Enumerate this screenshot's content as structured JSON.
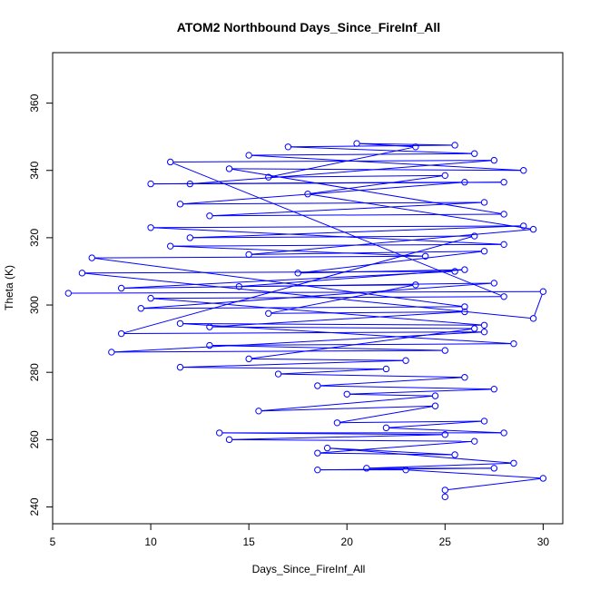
{
  "chart_data": {
    "type": "line",
    "title": "ATOM2 Northbound Days_Since_FireInf_All",
    "xlabel": "Days_Since_FireInf_All",
    "ylabel": "Theta (K)",
    "xlim": [
      5,
      31
    ],
    "ylim": [
      235,
      375
    ],
    "x_ticks": [
      "5",
      "10",
      "15",
      "20",
      "25",
      "30"
    ],
    "y_ticks": [
      "240",
      "260",
      "280",
      "300",
      "320",
      "340",
      "360"
    ],
    "grid": false,
    "legend": "none",
    "series": [
      {
        "color": "#0000ff",
        "marker": "open-circle",
        "points": [
          [
            5.8,
            303.5
          ],
          [
            30.0,
            304.0
          ],
          [
            29.5,
            296.0
          ],
          [
            6.5,
            309.5
          ],
          [
            25.5,
            310.0
          ],
          [
            8.5,
            305.0
          ],
          [
            27.5,
            306.5
          ],
          [
            9.5,
            299.0
          ],
          [
            26.0,
            299.5
          ],
          [
            7.0,
            314.0
          ],
          [
            24.0,
            314.5
          ],
          [
            11.0,
            317.5
          ],
          [
            28.0,
            318.0
          ],
          [
            10.0,
            323.0
          ],
          [
            29.0,
            323.5
          ],
          [
            12.0,
            320.0
          ],
          [
            26.5,
            320.5
          ],
          [
            8.5,
            291.5
          ],
          [
            27.0,
            292.0
          ],
          [
            8.0,
            286.0
          ],
          [
            25.0,
            286.5
          ],
          [
            13.0,
            288.0
          ],
          [
            28.5,
            288.5
          ],
          [
            11.5,
            294.5
          ],
          [
            27.0,
            294.0
          ],
          [
            10.0,
            302.0
          ],
          [
            28.0,
            302.5
          ],
          [
            11.0,
            342.5
          ],
          [
            27.5,
            343.0
          ],
          [
            12.0,
            336.0
          ],
          [
            28.0,
            336.5
          ],
          [
            10.0,
            336.0
          ],
          [
            26.0,
            336.5
          ],
          [
            11.5,
            330.0
          ],
          [
            27.0,
            330.5
          ],
          [
            13.0,
            326.5
          ],
          [
            28.0,
            327.0
          ],
          [
            14.0,
            340.5
          ],
          [
            29.0,
            340.0
          ],
          [
            15.0,
            344.5
          ],
          [
            26.5,
            345.0
          ],
          [
            17.0,
            347.0
          ],
          [
            25.5,
            347.5
          ],
          [
            20.5,
            348.0
          ],
          [
            23.5,
            347.0
          ],
          [
            16.0,
            338.0
          ],
          [
            25.0,
            338.5
          ],
          [
            18.0,
            333.0
          ],
          [
            29.5,
            322.5
          ],
          [
            15.0,
            315.0
          ],
          [
            27.0,
            316.0
          ],
          [
            17.5,
            309.5
          ],
          [
            26.0,
            310.5
          ],
          [
            14.5,
            305.5
          ],
          [
            23.5,
            306.0
          ],
          [
            16.0,
            297.5
          ],
          [
            26.0,
            298.0
          ],
          [
            13.0,
            293.5
          ],
          [
            26.5,
            293.0
          ],
          [
            15.0,
            284.0
          ],
          [
            23.0,
            283.5
          ],
          [
            11.5,
            281.5
          ],
          [
            22.0,
            281.0
          ],
          [
            16.5,
            279.5
          ],
          [
            26.0,
            278.5
          ],
          [
            18.5,
            276.0
          ],
          [
            27.5,
            275.0
          ],
          [
            20.0,
            273.5
          ],
          [
            24.5,
            273.0
          ],
          [
            15.5,
            268.5
          ],
          [
            24.5,
            270.0
          ],
          [
            19.5,
            265.0
          ],
          [
            27.0,
            265.5
          ],
          [
            22.0,
            263.5
          ],
          [
            28.0,
            262.0
          ],
          [
            13.5,
            262.0
          ],
          [
            25.0,
            261.5
          ],
          [
            14.0,
            260.0
          ],
          [
            26.5,
            259.5
          ],
          [
            18.5,
            256.0
          ],
          [
            25.5,
            255.5
          ],
          [
            19.0,
            257.5
          ],
          [
            28.5,
            253.0
          ],
          [
            21.0,
            251.5
          ],
          [
            27.5,
            251.5
          ],
          [
            18.5,
            251.0
          ],
          [
            23.0,
            251.0
          ],
          [
            30.0,
            248.5
          ],
          [
            25.0,
            245.0
          ],
          [
            25.0,
            243.0
          ]
        ]
      }
    ]
  }
}
